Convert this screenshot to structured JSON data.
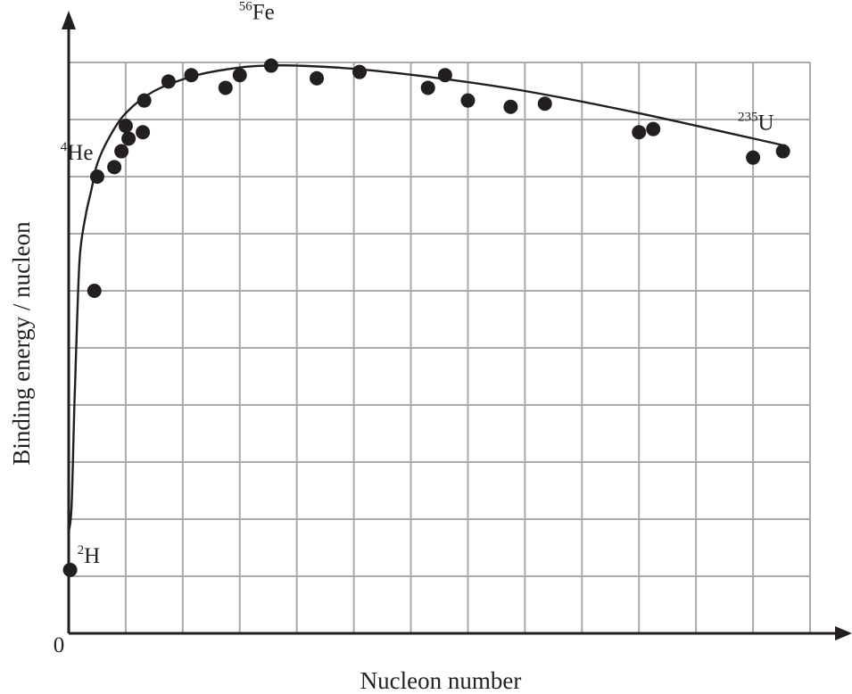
{
  "chart_data": {
    "type": "scatter",
    "title": "",
    "xlabel": "Nucleon number",
    "ylabel": "Binding energy / nucleon",
    "origin_label": "0",
    "grid": true,
    "xlim": [
      0,
      260
    ],
    "ylim": [
      0,
      9
    ],
    "ticks_labeled": false,
    "colors": {
      "points": "#231f20",
      "grid": "#a7a9ac",
      "axes": "#231f20"
    },
    "points": {
      "x": [
        0.5,
        9,
        10,
        16,
        18.5,
        20,
        21,
        26,
        26.5,
        35,
        43,
        55,
        60,
        71,
        87,
        102,
        126,
        132,
        140,
        155,
        167,
        200,
        205,
        240,
        250.5
      ],
      "y": [
        1.0,
        5.4,
        7.2,
        7.35,
        7.6,
        8.0,
        7.8,
        7.9,
        8.4,
        8.7,
        8.8,
        8.6,
        8.8,
        8.95,
        8.75,
        8.85,
        8.6,
        8.8,
        8.4,
        8.3,
        8.35,
        7.9,
        7.95,
        7.5,
        7.6
      ]
    },
    "curve": {
      "x": [
        1,
        2,
        3,
        4,
        6,
        8,
        10,
        14,
        20,
        30,
        45,
        60,
        70,
        80,
        100,
        130,
        160,
        200,
        250
      ],
      "y": [
        2.0,
        3.6,
        5.0,
        6.0,
        6.6,
        7.0,
        7.4,
        7.8,
        8.2,
        8.55,
        8.8,
        8.92,
        8.95,
        8.95,
        8.9,
        8.75,
        8.55,
        8.2,
        7.7
      ]
    },
    "annotations": [
      {
        "isotope": "2",
        "symbol": "H",
        "x": 0.5,
        "y": 1.0
      },
      {
        "isotope": "4",
        "symbol": "He",
        "x": 4,
        "y": 7.3
      },
      {
        "isotope": "56",
        "symbol": "Fe",
        "x": 70,
        "y": 9.4
      },
      {
        "isotope": "235",
        "symbol": "U",
        "x": 245,
        "y": 7.8
      }
    ]
  }
}
